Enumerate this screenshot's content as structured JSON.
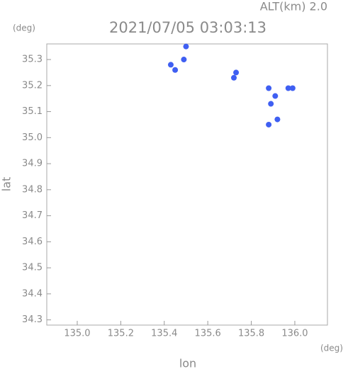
{
  "chart_data": {
    "type": "scatter",
    "title": "2021/07/05 03:03:13",
    "subtitle": "ALT(km)  2.0",
    "y_unit": "(deg)",
    "x_unit": "(deg)",
    "y_label": "lat",
    "x_label": "lon",
    "xlim": [
      134.86,
      136.15
    ],
    "ylim": [
      34.28,
      35.36
    ],
    "xticks": [
      {
        "value": 135,
        "label": "135.0"
      },
      135.2,
      135.4,
      135.6,
      135.8,
      {
        "value": 136,
        "label": "136.0"
      }
    ],
    "yticks": [
      34.3,
      34.4,
      34.5,
      34.6,
      34.7,
      34.8,
      34.9,
      {
        "value": 35,
        "label": "35.0"
      },
      35.1,
      35.2,
      35.3
    ],
    "series": [
      {
        "color": "#3f5ff2",
        "x": [
          135.43,
          135.45,
          135.5,
          135.49,
          135.73,
          135.72,
          135.88,
          135.91,
          135.89,
          135.97,
          135.99,
          135.92,
          135.88
        ],
        "values": [
          35.28,
          35.26,
          35.35,
          35.3,
          35.25,
          35.23,
          35.19,
          35.16,
          35.13,
          35.19,
          35.19,
          35.07,
          35.05
        ]
      }
    ]
  }
}
